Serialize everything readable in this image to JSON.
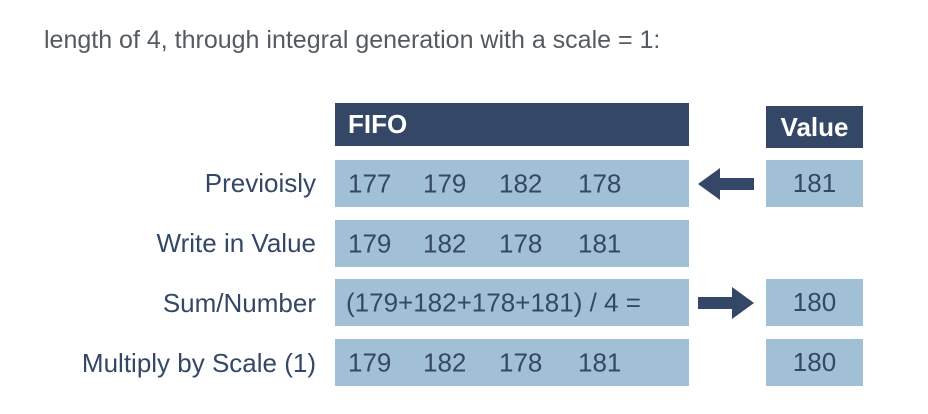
{
  "intro_text": "length of 4, through integral generation with a scale = 1:",
  "headers": {
    "fifo": "FIFO",
    "value": "Value"
  },
  "rows": [
    {
      "label": "Previoisly",
      "cells": [
        "177",
        "179",
        "182",
        "178"
      ],
      "value": "181",
      "arrow": "left"
    },
    {
      "label": "Write in Value",
      "cells": [
        "179",
        "182",
        "178",
        "181"
      ]
    },
    {
      "label": "Sum/Number",
      "formula": "(179+182+178+181) / 4 =",
      "value": "180",
      "arrow": "right"
    },
    {
      "label": "Multiply by Scale (1)",
      "cells": [
        "179",
        "182",
        "178",
        "181"
      ],
      "value": "180"
    }
  ],
  "colors": {
    "header": "#344766",
    "box": "#a1c0d6",
    "text": "#344766",
    "intro_text": "#555a61"
  }
}
